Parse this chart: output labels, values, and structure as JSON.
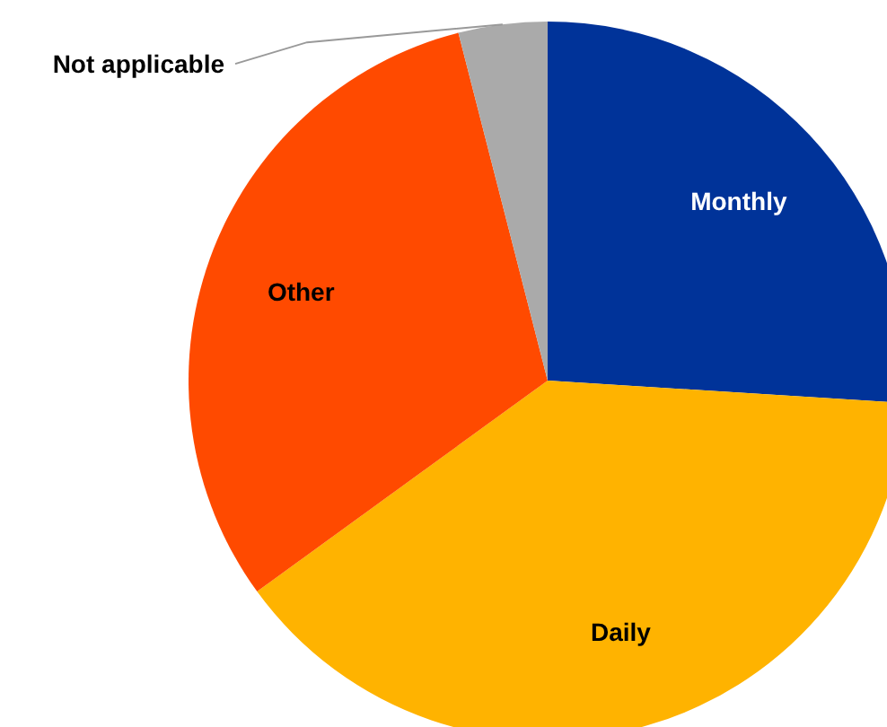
{
  "chart_data": {
    "type": "pie",
    "categories": [
      "Monthly",
      "Daily",
      "Other",
      "Not applicable"
    ],
    "values": [
      26,
      39,
      31,
      4
    ],
    "colors": [
      "#003399",
      "#ffb300",
      "#ff4a00",
      "#aaaaaa"
    ]
  }
}
